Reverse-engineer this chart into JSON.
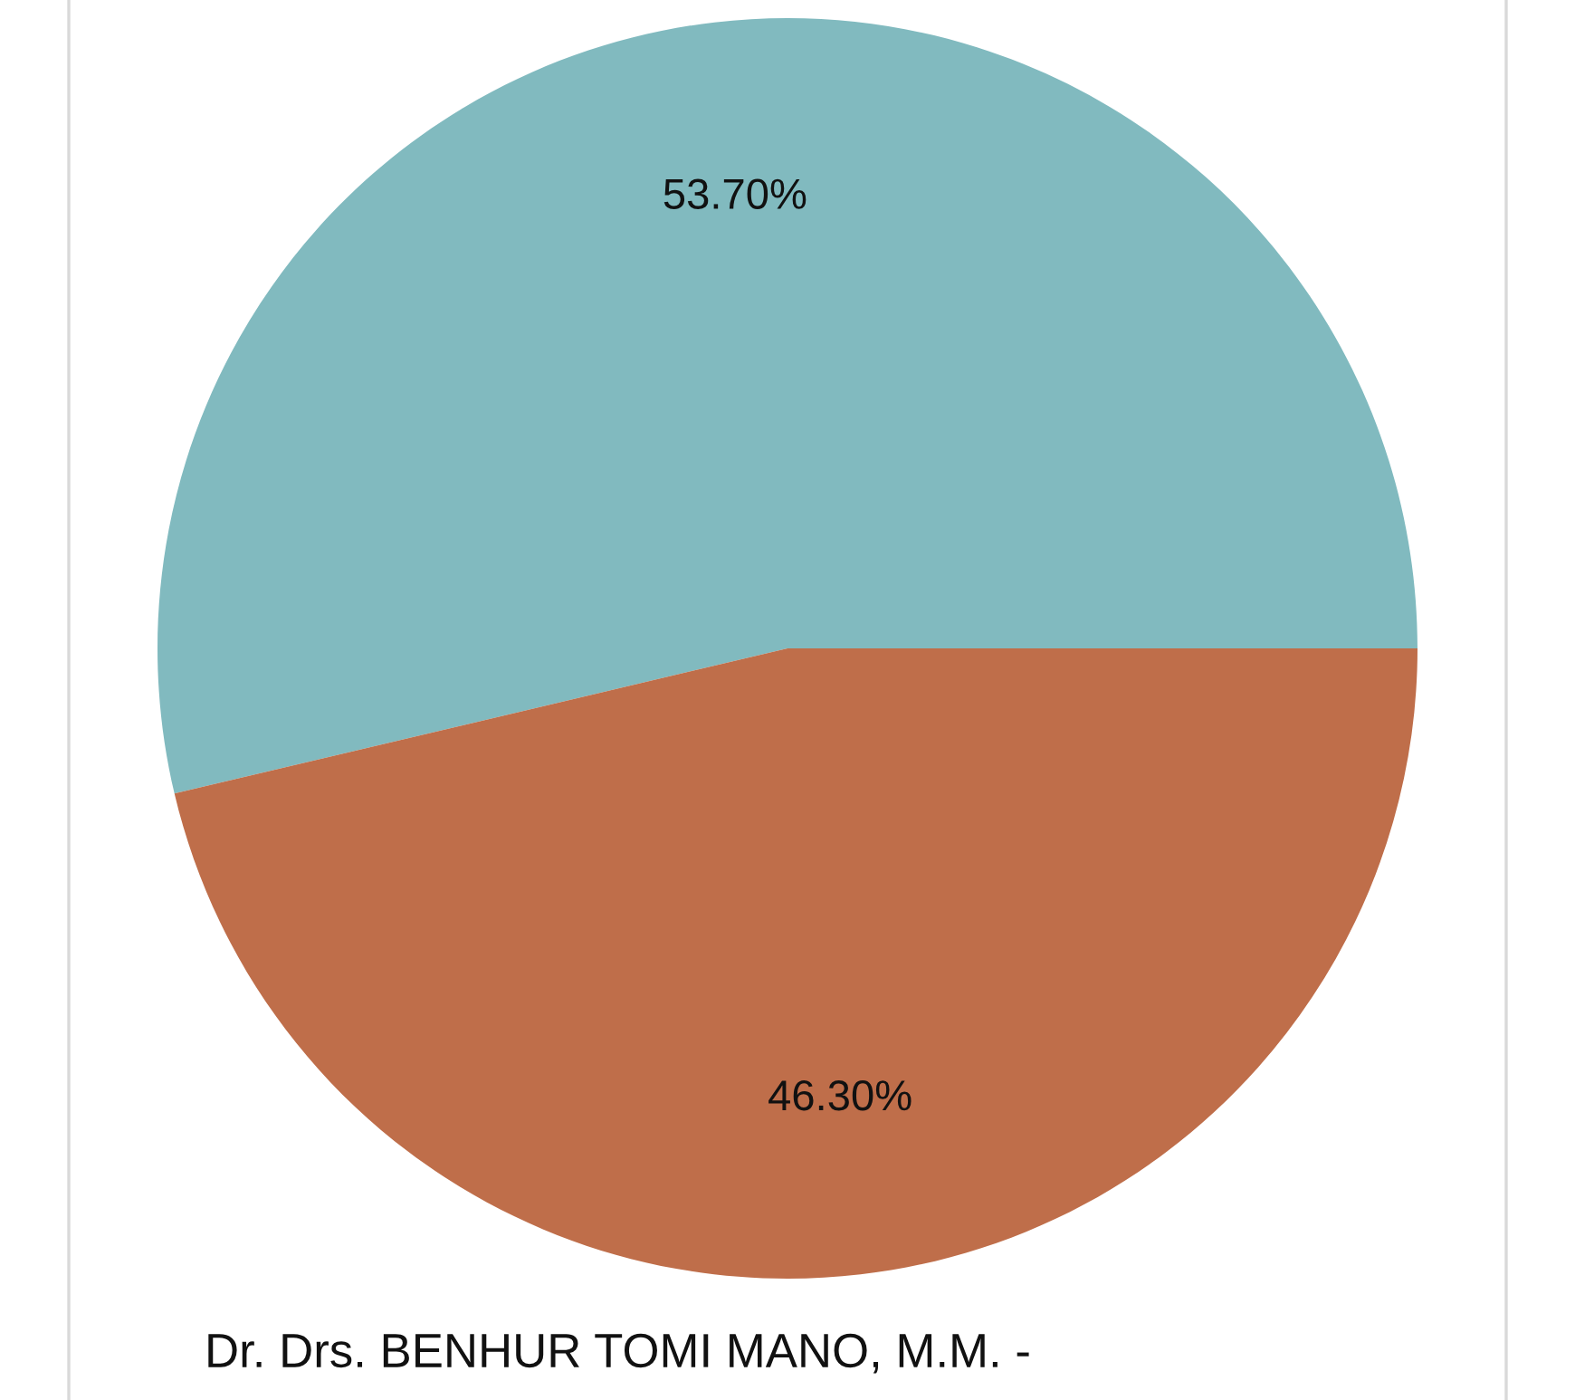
{
  "chart_data": {
    "type": "pie",
    "categories": [
      null,
      null
    ],
    "values": [
      53.7,
      46.3
    ],
    "colors": [
      "#81babf",
      "#bf6e4a"
    ],
    "value_labels": [
      "53.70%",
      "46.30%"
    ],
    "annotations": [
      "Dr. Drs. BENHUR TOMI MANO, M.M. -"
    ]
  }
}
